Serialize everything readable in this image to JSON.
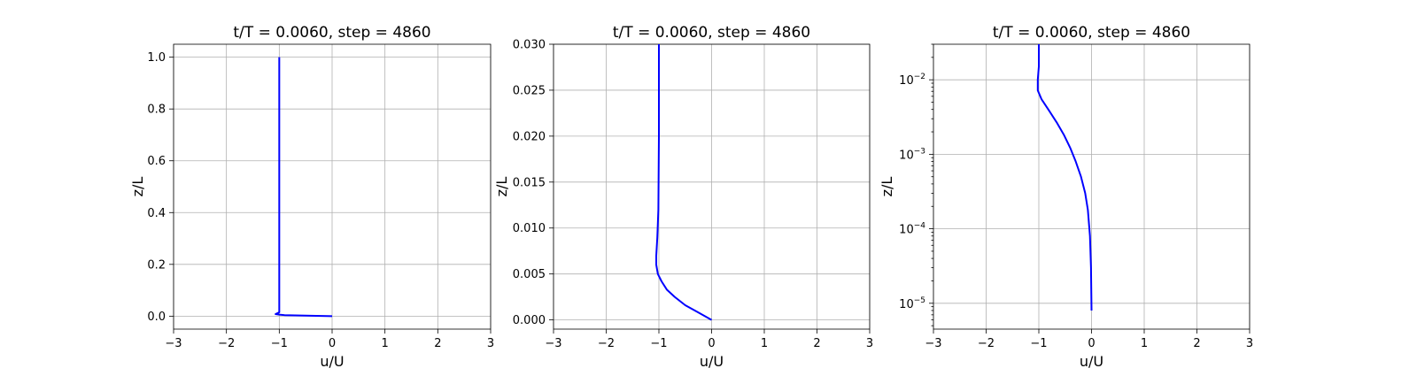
{
  "chart_data": [
    {
      "type": "line",
      "title": "t/T = 0.0060, step = 4860",
      "xlabel": "u/U",
      "ylabel": "z/L",
      "xlim": [
        -3,
        3
      ],
      "ylim": [
        -0.05,
        1.05
      ],
      "yscale": "linear",
      "xticks": [
        -3,
        -2,
        -1,
        0,
        1,
        2,
        3
      ],
      "xtick_labels": [
        "−3",
        "−2",
        "−1",
        "0",
        "1",
        "2",
        "3"
      ],
      "yticks": [
        0.0,
        0.2,
        0.4,
        0.6,
        0.8,
        1.0
      ],
      "ytick_labels": [
        "0.0",
        "0.2",
        "0.4",
        "0.6",
        "0.8",
        "1.0"
      ],
      "grid": true,
      "color": "#0000ff",
      "series": [
        {
          "x": [
            0,
            -0.5,
            -0.9,
            -1.0,
            -1.07,
            -1.0,
            -1.0,
            -1.0
          ],
          "y": [
            0.0,
            0.002,
            0.004,
            0.006,
            0.008,
            0.015,
            0.5,
            1.0
          ]
        }
      ]
    },
    {
      "type": "line",
      "title": "t/T = 0.0060, step = 4860",
      "xlabel": "u/U",
      "ylabel": "z/L",
      "xlim": [
        -3,
        3
      ],
      "ylim": [
        -0.001,
        0.03
      ],
      "yscale": "linear",
      "xticks": [
        -3,
        -2,
        -1,
        0,
        1,
        2,
        3
      ],
      "xtick_labels": [
        "−3",
        "−2",
        "−1",
        "0",
        "1",
        "2",
        "3"
      ],
      "yticks": [
        0.0,
        0.005,
        0.01,
        0.015,
        0.02,
        0.025,
        0.03
      ],
      "ytick_labels": [
        "0.000",
        "0.005",
        "0.010",
        "0.015",
        "0.020",
        "0.025",
        "0.030"
      ],
      "grid": true,
      "color": "#0000ff",
      "series": [
        {
          "x": [
            0,
            -0.25,
            -0.5,
            -0.7,
            -0.85,
            -0.95,
            -1.02,
            -1.05,
            -1.05,
            -1.03,
            -1.01,
            -1.0,
            -1.0
          ],
          "y": [
            0.0,
            0.0008,
            0.0016,
            0.0025,
            0.0033,
            0.0042,
            0.005,
            0.006,
            0.007,
            0.009,
            0.012,
            0.02,
            0.03
          ]
        }
      ]
    },
    {
      "type": "line",
      "title": "t/T = 0.0060, step = 4860",
      "xlabel": "u/U",
      "ylabel": "z/L",
      "xlim": [
        -3,
        3
      ],
      "ylim": [
        4.5e-06,
        0.03
      ],
      "yscale": "log",
      "xticks": [
        -3,
        -2,
        -1,
        0,
        1,
        2,
        3
      ],
      "xtick_labels": [
        "−3",
        "−2",
        "−1",
        "0",
        "1",
        "2",
        "3"
      ],
      "yticks": [
        1e-05,
        0.0001,
        0.001,
        0.01
      ],
      "ytick_labels": [
        {
          "base": "10",
          "exp": "−5"
        },
        {
          "base": "10",
          "exp": "−4"
        },
        {
          "base": "10",
          "exp": "−3"
        },
        {
          "base": "10",
          "exp": "−2"
        }
      ],
      "grid": true,
      "color": "#0000ff",
      "series": [
        {
          "x": [
            0,
            -0.01,
            -0.03,
            -0.07,
            -0.12,
            -0.2,
            -0.3,
            -0.4,
            -0.52,
            -0.65,
            -0.8,
            -0.95,
            -1.02,
            -1.02,
            -1.0,
            -1.0
          ],
          "y": [
            8e-06,
            3e-05,
            8e-05,
            0.00018,
            0.0003,
            0.0005,
            0.0008,
            0.0012,
            0.0018,
            0.0026,
            0.0038,
            0.0055,
            0.0072,
            0.01,
            0.015,
            0.03
          ]
        }
      ]
    }
  ]
}
